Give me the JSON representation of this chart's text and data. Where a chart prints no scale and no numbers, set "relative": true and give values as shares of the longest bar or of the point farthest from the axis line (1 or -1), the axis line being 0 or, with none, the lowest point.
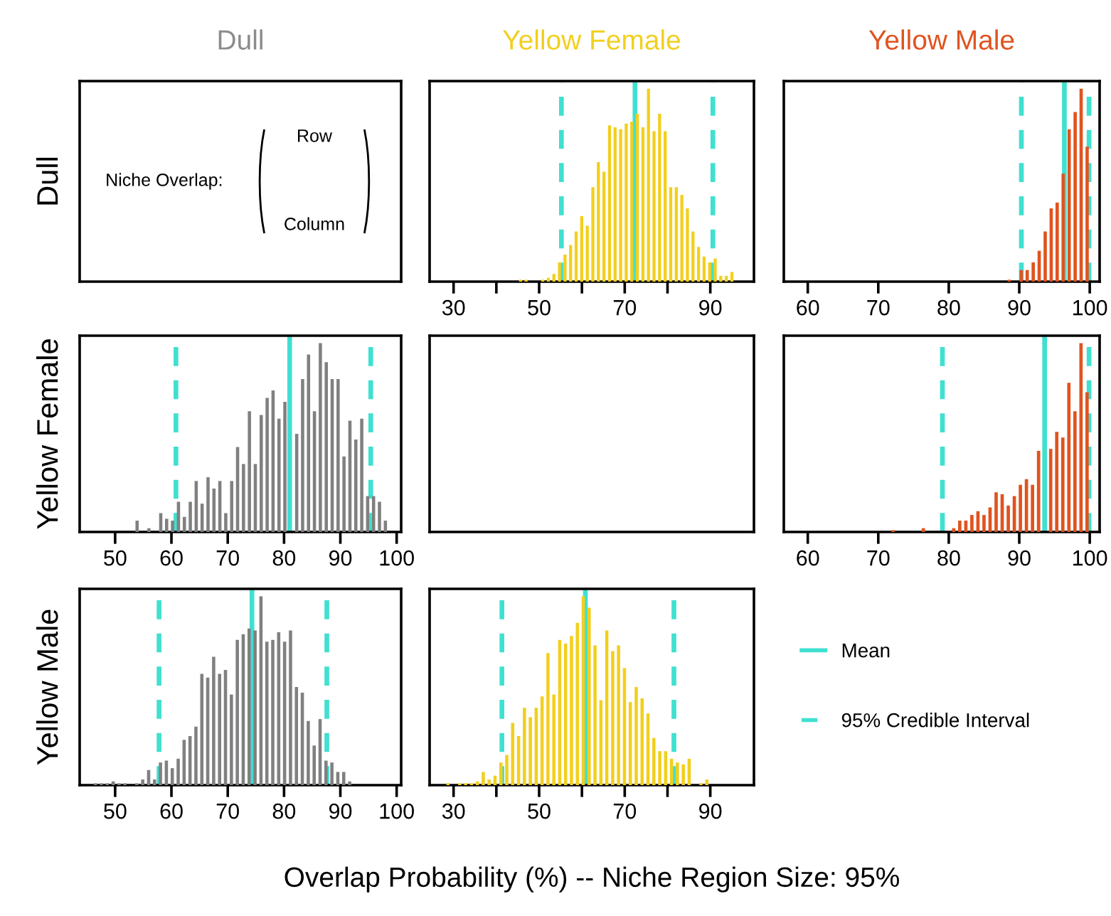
{
  "chart_data": [
    {
      "type": "other",
      "title": "Dull",
      "color": "#8c8c8c",
      "ylabel": "Dull",
      "annotations": [
        "Niche Overlap:",
        "Row",
        "Column"
      ]
    },
    {
      "type": "bar",
      "title": "Yellow Female",
      "color": "#f2cf1d",
      "relative": true,
      "tick_labels": "x",
      "xlim": [
        24.4,
        100.2
      ],
      "xticks": [
        30,
        {
          "value": 40,
          "label": null
        },
        50,
        {
          "value": 60,
          "label": null
        },
        70,
        {
          "value": 80,
          "label": null
        },
        90
      ],
      "x": [
        45.65,
        46.95,
        50.85,
        52.15,
        53.45,
        54.75,
        56.05,
        57.35,
        58.65,
        59.95,
        61.25,
        62.55,
        63.85,
        65.15,
        66.45,
        67.75,
        69.05,
        70.35,
        71.65,
        72.95,
        74.25,
        75.55,
        76.85,
        78.15,
        79.45,
        80.75,
        82.05,
        83.35,
        84.65,
        85.95,
        87.25,
        88.55,
        89.85,
        91.15,
        92.45,
        93.75,
        95.05
      ],
      "values": [
        0.01,
        0.01,
        0.01,
        0.02,
        0.04,
        0.1,
        0.14,
        0.19,
        0.26,
        0.34,
        0.29,
        0.49,
        0.62,
        0.57,
        0.81,
        0.8,
        0.79,
        0.82,
        0.83,
        0.87,
        0.8,
        1.0,
        0.78,
        0.87,
        0.78,
        0.49,
        0.49,
        0.45,
        0.38,
        0.26,
        0.18,
        0.13,
        0.1,
        0.12,
        0.03,
        0.03,
        0.05
      ],
      "ref_lines": [
        {
          "axis": "x",
          "value": 72.4,
          "color": "#40e0d0",
          "line_style": "solid"
        },
        {
          "axis": "x",
          "value": 55.2,
          "color": "#40e0d0",
          "line_style": "dashed"
        },
        {
          "axis": "x",
          "value": 90.6,
          "color": "#40e0d0",
          "line_style": "dashed"
        }
      ]
    },
    {
      "type": "bar",
      "title": "Yellow Male",
      "color": "#e0531f",
      "relative": true,
      "tick_labels": "x",
      "xlim": [
        56.6,
        101.4
      ],
      "xticks": [
        60,
        70,
        80,
        90,
        100
      ],
      "x": [
        88.58,
        90.28,
        91.13,
        91.98,
        92.83,
        93.68,
        94.53,
        95.38,
        96.23,
        97.08,
        97.93,
        98.78,
        99.63
      ],
      "values": [
        0.01,
        0.06,
        0.06,
        0.1,
        0.16,
        0.26,
        0.38,
        0.41,
        0.56,
        0.79,
        0.88,
        1.0,
        0.7
      ],
      "ref_lines": [
        {
          "axis": "x",
          "value": 96.4,
          "color": "#40e0d0",
          "line_style": "solid"
        },
        {
          "axis": "x",
          "value": 90.3,
          "color": "#40e0d0",
          "line_style": "dashed"
        },
        {
          "axis": "x",
          "value": 99.9,
          "color": "#40e0d0",
          "line_style": "dashed"
        }
      ]
    },
    {
      "type": "bar",
      "ylabel": "Yellow Female",
      "color": "#808080",
      "relative": true,
      "tick_labels": "x",
      "xlim": [
        43.7,
        100.8
      ],
      "xticks": [
        50,
        60,
        70,
        80,
        90,
        100
      ],
      "x": [
        53.9,
        56.0,
        58.1,
        59.15,
        60.2,
        61.25,
        62.3,
        63.35,
        64.4,
        65.45,
        66.5,
        67.55,
        68.6,
        69.65,
        70.7,
        71.75,
        72.8,
        73.85,
        74.9,
        75.95,
        77.0,
        78.05,
        79.1,
        80.15,
        82.25,
        83.3,
        84.35,
        85.4,
        86.45,
        87.5,
        88.55,
        89.6,
        90.65,
        91.7,
        92.75,
        93.8,
        94.85,
        95.9,
        96.95,
        98.0
      ],
      "values": [
        0.06,
        0.02,
        0.1,
        0.07,
        0.06,
        0.16,
        0.08,
        0.16,
        0.27,
        0.15,
        0.29,
        0.23,
        0.27,
        0.1,
        0.27,
        0.45,
        0.36,
        0.64,
        0.36,
        0.62,
        0.71,
        0.75,
        0.6,
        0.69,
        0.52,
        0.81,
        0.94,
        0.64,
        1.0,
        0.9,
        0.81,
        0.81,
        0.4,
        0.59,
        0.49,
        0.6,
        0.19,
        0.19,
        0.16,
        0.06
      ],
      "ref_lines": [
        {
          "axis": "x",
          "value": 81.0,
          "color": "#40e0d0",
          "line_style": "solid"
        },
        {
          "axis": "x",
          "value": 60.8,
          "color": "#40e0d0",
          "line_style": "dashed"
        },
        {
          "axis": "x",
          "value": 95.4,
          "color": "#40e0d0",
          "line_style": "dashed"
        }
      ]
    },
    {
      "type": "other"
    },
    {
      "type": "bar",
      "color": "#e0531f",
      "relative": true,
      "tick_labels": "x",
      "xlim": [
        56.6,
        101.4
      ],
      "xticks": [
        60,
        70,
        80,
        90,
        100
      ],
      "x": [
        72.1,
        76.4,
        80.7,
        81.56,
        82.42,
        83.28,
        84.14,
        85.0,
        85.86,
        86.72,
        87.58,
        88.44,
        89.3,
        90.16,
        91.02,
        91.88,
        92.74,
        94.46,
        95.32,
        96.18,
        97.04,
        97.9,
        98.76,
        99.62
      ],
      "values": [
        0.01,
        0.02,
        0.02,
        0.06,
        0.06,
        0.09,
        0.11,
        0.09,
        0.13,
        0.21,
        0.2,
        0.14,
        0.19,
        0.25,
        0.28,
        0.25,
        0.43,
        0.44,
        0.53,
        0.5,
        0.79,
        0.64,
        1.0,
        0.74
      ],
      "ref_lines": [
        {
          "axis": "x",
          "value": 93.6,
          "color": "#40e0d0",
          "line_style": "solid"
        },
        {
          "axis": "x",
          "value": 79.1,
          "color": "#40e0d0",
          "line_style": "dashed"
        },
        {
          "axis": "x",
          "value": 99.9,
          "color": "#40e0d0",
          "line_style": "dashed"
        }
      ]
    },
    {
      "type": "bar",
      "ylabel": "Yellow Male",
      "color": "#808080",
      "relative": true,
      "tick_labels": "x",
      "xlim": [
        43.7,
        100.8
      ],
      "xticks": [
        50,
        60,
        70,
        80,
        90,
        100
      ],
      "x": [
        46.5,
        47.55,
        48.6,
        49.65,
        50.7,
        51.75,
        53.85,
        54.9,
        55.95,
        57.0,
        58.05,
        59.1,
        60.15,
        61.2,
        62.25,
        63.3,
        64.35,
        65.4,
        66.45,
        67.5,
        68.55,
        69.6,
        70.65,
        71.7,
        72.75,
        73.8,
        74.85,
        75.9,
        76.95,
        78.0,
        79.05,
        80.1,
        81.15,
        82.2,
        83.25,
        84.3,
        85.35,
        86.4,
        87.45,
        88.5,
        89.55,
        90.6,
        91.65
      ],
      "values": [
        0.01,
        0.01,
        0.01,
        0.02,
        0.01,
        0.01,
        0.01,
        0.03,
        0.08,
        0.03,
        0.12,
        0.13,
        0.09,
        0.14,
        0.24,
        0.26,
        0.31,
        0.59,
        0.57,
        0.68,
        0.59,
        0.61,
        0.48,
        0.77,
        0.8,
        0.83,
        0.82,
        1.0,
        0.76,
        0.77,
        0.81,
        0.76,
        0.82,
        0.52,
        0.49,
        0.34,
        0.21,
        0.35,
        0.13,
        0.12,
        0.07,
        0.07,
        0.02
      ],
      "ref_lines": [
        {
          "axis": "x",
          "value": 74.3,
          "color": "#40e0d0",
          "line_style": "solid"
        },
        {
          "axis": "x",
          "value": 57.8,
          "color": "#40e0d0",
          "line_style": "dashed"
        },
        {
          "axis": "x",
          "value": 87.6,
          "color": "#40e0d0",
          "line_style": "dashed"
        }
      ]
    },
    {
      "type": "bar",
      "color": "#f2cf1d",
      "relative": true,
      "tick_labels": "x",
      "xlabel": "Overlap Probability (%) -- Niche Region Size: 95%",
      "xlim": [
        24.4,
        100.2
      ],
      "xticks": [
        30,
        {
          "value": 40,
          "label": null
        },
        50,
        {
          "value": 60,
          "label": null
        },
        70,
        {
          "value": 80,
          "label": null
        },
        90
      ],
      "x": [
        28.69,
        31.44,
        32.81,
        34.19,
        35.56,
        36.94,
        38.31,
        39.69,
        41.06,
        42.44,
        43.81,
        45.19,
        46.56,
        47.94,
        49.31,
        50.69,
        52.06,
        53.44,
        54.81,
        56.19,
        57.56,
        58.94,
        60.31,
        61.69,
        63.06,
        64.44,
        65.81,
        67.19,
        68.56,
        69.94,
        71.31,
        72.69,
        74.06,
        75.44,
        76.81,
        78.19,
        79.56,
        80.94,
        82.31,
        83.69,
        85.06,
        87.81,
        89.19
      ],
      "values": [
        0.01,
        0.01,
        0.01,
        0.01,
        0.02,
        0.07,
        0.03,
        0.05,
        0.12,
        0.16,
        0.33,
        0.26,
        0.41,
        0.36,
        0.41,
        0.47,
        0.7,
        0.48,
        0.77,
        0.75,
        0.79,
        0.86,
        1.0,
        0.94,
        0.74,
        0.45,
        0.82,
        0.71,
        0.74,
        0.62,
        0.44,
        0.52,
        0.46,
        0.38,
        0.25,
        0.18,
        0.18,
        0.14,
        0.12,
        0.11,
        0.14,
        0.01,
        0.03
      ],
      "ref_lines": [
        {
          "axis": "x",
          "value": 60.8,
          "color": "#40e0d0",
          "line_style": "solid"
        },
        {
          "axis": "x",
          "value": 41.3,
          "color": "#40e0d0",
          "line_style": "dashed"
        },
        {
          "axis": "x",
          "value": 81.5,
          "color": "#40e0d0",
          "line_style": "dashed"
        }
      ]
    },
    {
      "type": "other",
      "legend": "left",
      "series": [
        {
          "name": "Mean",
          "color": "#40e0d0",
          "line_style": "solid"
        },
        {
          "name": "95% Credible Interval",
          "color": "#40e0d0",
          "line_style": "dashed"
        }
      ]
    }
  ]
}
